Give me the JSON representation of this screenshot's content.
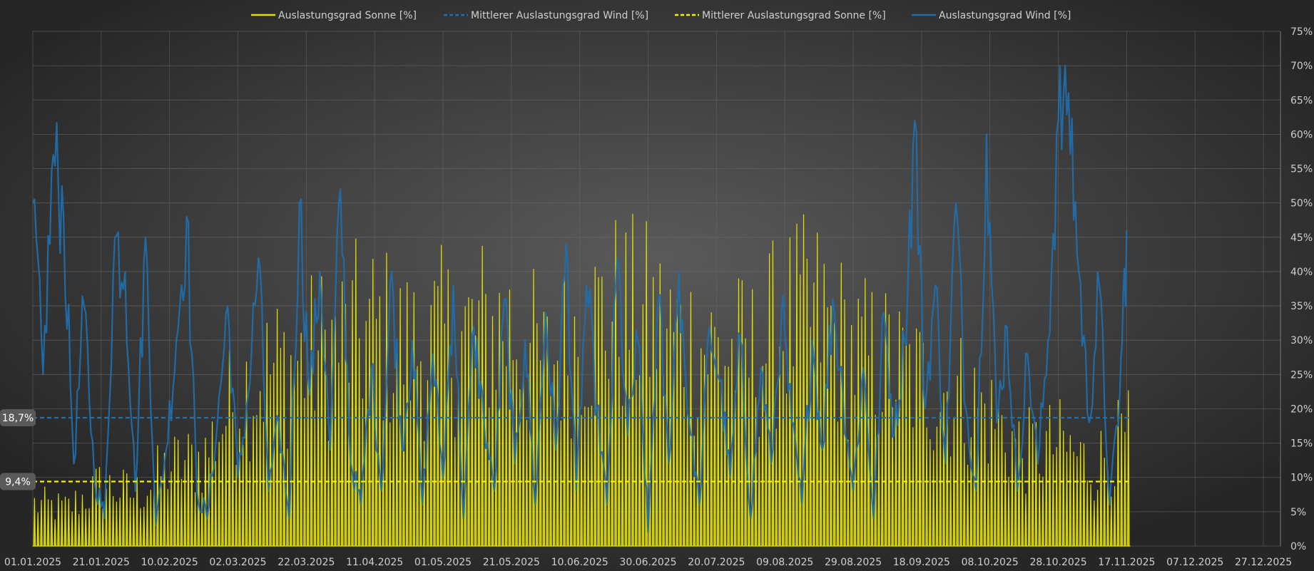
{
  "chart_data": {
    "type": "area",
    "title": "",
    "xlabel": "",
    "ylabel": "",
    "xlim": [
      "01.01.2025",
      "31.12.2025"
    ],
    "ylim": [
      0,
      75
    ],
    "y_unit": "%",
    "grid": true,
    "legend_position": "top-center",
    "x_ticks": [
      "01.01.2025",
      "21.01.2025",
      "10.02.2025",
      "02.03.2025",
      "22.03.2025",
      "11.04.2025",
      "01.05.2025",
      "21.05.2025",
      "10.06.2025",
      "30.06.2025",
      "20.07.2025",
      "09.08.2025",
      "29.08.2025",
      "18.09.2025",
      "08.10.2025",
      "28.10.2025",
      "17.11.2025",
      "07.12.2025",
      "27.12.2025"
    ],
    "y_ticks": [
      "0%",
      "5%",
      "10%",
      "15%",
      "20%",
      "25%",
      "30%",
      "35%",
      "40%",
      "45%",
      "50%",
      "55%",
      "60%",
      "65%",
      "70%",
      "75%"
    ],
    "legend": [
      {
        "name": "Auslastungsgrad Sonne [%]",
        "color": "#e2e000",
        "style": "solid"
      },
      {
        "name": "Mittlerer Auslastungsgrad Wind [%]",
        "color": "#1f6fae",
        "style": "dashed"
      },
      {
        "name": "Mittlerer Auslastungsgrad Sonne [%]",
        "color": "#f3f000",
        "style": "dashed"
      },
      {
        "name": "Auslastungsgrad Wind [%]",
        "color": "#1f6fae",
        "style": "solid"
      }
    ],
    "series_meta": [
      {
        "name": "Auslastungsgrad Sonne [%]",
        "color": "#e2e000",
        "fill_top": "#e8e400",
        "fill_bottom": "#b9b200"
      },
      {
        "name": "Auslastungsgrad Wind [%]",
        "color": "#1f6fae"
      }
    ],
    "mean_lines": [
      {
        "name": "Mittlerer Auslastungsgrad Wind [%]",
        "value": 18.7,
        "label": "18,7%",
        "color": "#2070aa"
      },
      {
        "name": "Mittlerer Auslastungsgrad Sonne [%]",
        "value": 9.4,
        "label": "9,4%",
        "color": "#f3f000"
      }
    ],
    "data_end": "17.11.2025",
    "sun_daily_peak": {
      "dates": [
        "01.01.2025",
        "11.01.2025",
        "21.01.2025",
        "31.01.2025",
        "10.02.2025",
        "20.02.2025",
        "02.03.2025",
        "12.03.2025",
        "22.03.2025",
        "01.04.2025",
        "11.04.2025",
        "21.04.2025",
        "01.05.2025",
        "11.05.2025",
        "21.05.2025",
        "31.05.2025",
        "10.06.2025",
        "20.06.2025",
        "30.06.2025",
        "10.07.2025",
        "20.07.2025",
        "30.07.2025",
        "09.08.2025",
        "19.08.2025",
        "29.08.2025",
        "08.09.2025",
        "18.09.2025",
        "28.09.2025",
        "08.10.2025",
        "18.10.2025",
        "28.10.2025",
        "07.11.2025",
        "17.11.2025"
      ],
      "values": [
        9,
        8,
        13,
        11,
        17,
        19,
        33,
        38,
        40,
        44,
        46,
        42,
        44,
        46,
        47,
        38,
        46,
        50,
        48,
        44,
        42,
        40,
        48,
        49,
        41,
        39,
        35,
        33,
        28,
        20,
        22,
        17,
        23
      ]
    },
    "wind": {
      "dates": [
        "01.01.2025",
        "04.01.2025",
        "07.01.2025",
        "10.01.2025",
        "13.01.2025",
        "16.01.2025",
        "19.01.2025",
        "22.01.2025",
        "25.01.2025",
        "28.01.2025",
        "31.01.2025",
        "03.02.2025",
        "06.02.2025",
        "09.02.2025",
        "12.02.2025",
        "15.02.2025",
        "18.02.2025",
        "21.02.2025",
        "24.02.2025",
        "27.02.2025",
        "02.03.2025",
        "05.03.2025",
        "08.03.2025",
        "11.03.2025",
        "14.03.2025",
        "17.03.2025",
        "20.03.2025",
        "23.03.2025",
        "26.03.2025",
        "29.03.2025",
        "01.04.2025",
        "04.04.2025",
        "07.04.2025",
        "10.04.2025",
        "13.04.2025",
        "16.04.2025",
        "19.04.2025",
        "22.04.2025",
        "25.04.2025",
        "28.04.2025",
        "01.05.2025",
        "04.05.2025",
        "07.05.2025",
        "10.05.2025",
        "13.05.2025",
        "16.05.2025",
        "19.05.2025",
        "22.05.2025",
        "25.05.2025",
        "28.05.2025",
        "31.05.2025",
        "03.06.2025",
        "06.06.2025",
        "09.06.2025",
        "12.06.2025",
        "15.06.2025",
        "18.06.2025",
        "21.06.2025",
        "24.06.2025",
        "27.06.2025",
        "30.06.2025",
        "03.07.2025",
        "06.07.2025",
        "09.07.2025",
        "12.07.2025",
        "15.07.2025",
        "18.07.2025",
        "21.07.2025",
        "24.07.2025",
        "27.07.2025",
        "30.07.2025",
        "02.08.2025",
        "05.08.2025",
        "08.08.2025",
        "11.08.2025",
        "14.08.2025",
        "17.08.2025",
        "20.08.2025",
        "23.08.2025",
        "26.08.2025",
        "29.08.2025",
        "01.09.2025",
        "04.09.2025",
        "07.09.2025",
        "10.09.2025",
        "13.09.2025",
        "16.09.2025",
        "19.09.2025",
        "22.09.2025",
        "25.09.2025",
        "28.09.2025",
        "01.10.2025",
        "04.10.2025",
        "07.10.2025",
        "10.10.2025",
        "13.10.2025",
        "16.10.2025",
        "19.10.2025",
        "22.10.2025",
        "25.10.2025",
        "28.10.2025",
        "31.10.2025",
        "03.11.2025",
        "06.11.2025",
        "09.11.2025",
        "12.11.2025",
        "15.11.2025",
        "17.11.2025"
      ],
      "values": [
        50,
        25,
        57,
        48,
        12,
        35,
        10,
        4,
        45,
        40,
        8,
        45,
        3,
        14,
        30,
        48,
        8,
        4,
        18,
        35,
        10,
        22,
        42,
        8,
        18,
        4,
        50,
        22,
        40,
        14,
        52,
        12,
        6,
        26,
        8,
        40,
        14,
        30,
        6,
        28,
        10,
        38,
        4,
        32,
        18,
        8,
        36,
        12,
        30,
        6,
        34,
        14,
        44,
        8,
        38,
        20,
        6,
        42,
        16,
        30,
        2,
        36,
        12,
        40,
        18,
        6,
        32,
        24,
        10,
        30,
        4,
        26,
        12,
        34,
        18,
        6,
        30,
        14,
        36,
        22,
        8,
        26,
        4,
        34,
        16,
        30,
        62,
        20,
        38,
        12,
        50,
        20,
        8,
        60,
        18,
        32,
        8,
        28,
        12,
        30,
        62,
        66,
        40,
        18,
        38,
        6,
        22,
        46
      ]
    }
  }
}
